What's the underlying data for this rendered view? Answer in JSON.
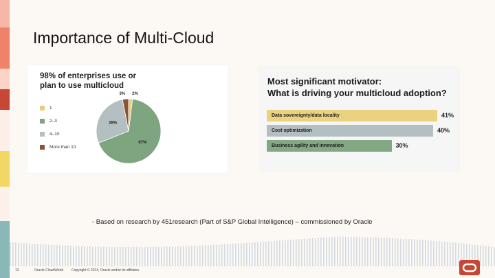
{
  "slide": {
    "title": "Importance of Multi-Cloud",
    "source_note": "- Based on research by 451research (Part of S&P Global Intelligence) – commissioned by Oracle"
  },
  "left_panel": {
    "heading_line1": "98% of enterprises use or",
    "heading_line2": "plan to use multicloud"
  },
  "chart_data": [
    {
      "type": "pie",
      "title": "98% of enterprises use or plan to use multicloud",
      "slices": [
        {
          "label": "1",
          "value": 2,
          "value_label": "2%",
          "color": "#e9cd7d"
        },
        {
          "label": "2–3",
          "value": 67,
          "value_label": "67%",
          "color": "#7ea57f"
        },
        {
          "label": "4–10",
          "value": 28,
          "value_label": "28%",
          "color": "#b3bfc0"
        },
        {
          "label": "More than 10",
          "value": 3,
          "value_label": "3%",
          "color": "#8a5535"
        }
      ]
    },
    {
      "type": "bar",
      "orientation": "horizontal",
      "title": "Most significant motivator: What is driving your multicloud adoption?",
      "categories": [
        "Data sovereignty/data locality",
        "Cost optimization",
        "Business agility and innovation"
      ],
      "values": [
        41,
        40,
        30
      ],
      "value_labels": [
        "41%",
        "40%",
        "30%"
      ],
      "colors": [
        "#ead27e",
        "#b4bfc1",
        "#83a884"
      ]
    }
  ],
  "right_panel": {
    "heading_line1": "Most significant motivator:",
    "heading_line2": "What is driving your multicloud adoption?"
  },
  "footer": {
    "page_number": "13",
    "event": "Oracle CloudWorld",
    "copyright": "Copyright © 2024, Oracle and/or its affiliates"
  },
  "colors": {
    "background": "#fcf8f4",
    "band_red": "#c74634",
    "band_salmon": "#f0826a",
    "band_yellow": "#f3d765",
    "band_teal": "#8ab8b8",
    "stripe": "#c7d2dc",
    "oracle_red": "#c74634"
  },
  "icons": {
    "logo": "oracle-logo-icon"
  }
}
